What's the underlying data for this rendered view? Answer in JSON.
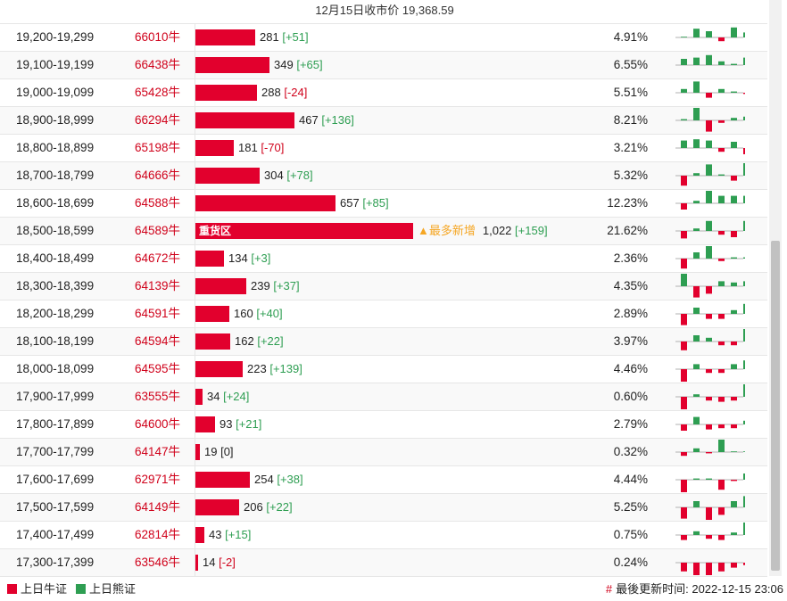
{
  "header": {
    "title": "12月15日收市价 19,368.59"
  },
  "colors": {
    "bull": "#e2002d",
    "bear": "#2e9e52",
    "accent": "#f5a623"
  },
  "rows": [
    {
      "range": "19,200-19,299",
      "code": "66010牛",
      "bar_fraction": 0.0645,
      "count": "281",
      "change": "[+51]",
      "dir": "pos",
      "pct": "4.91%",
      "spark": [
        0,
        0.7,
        0.5,
        -0.3,
        0.8,
        0.4
      ]
    },
    {
      "range": "19,100-19,199",
      "code": "66438牛",
      "bar_fraction": 0.08,
      "count": "349",
      "change": "[+65]",
      "dir": "pos",
      "pct": "6.55%",
      "spark": [
        0.5,
        0.6,
        0.8,
        0.3,
        0.1,
        0.6
      ]
    },
    {
      "range": "19,000-19,099",
      "code": "65428牛",
      "bar_fraction": 0.066,
      "count": "288",
      "change": "[-24]",
      "dir": "neg",
      "pct": "5.51%",
      "spark": [
        0.3,
        0.9,
        -0.4,
        0.3,
        0.1,
        -0.1
      ]
    },
    {
      "range": "18,900-18,999",
      "code": "66294牛",
      "bar_fraction": 0.107,
      "count": "467",
      "change": "[+136]",
      "dir": "pos",
      "pct": "8.21%",
      "spark": [
        0.1,
        1.0,
        -0.9,
        -0.2,
        0.2,
        0.3
      ]
    },
    {
      "range": "18,800-18,899",
      "code": "65198牛",
      "bar_fraction": 0.0415,
      "count": "181",
      "change": "[-70]",
      "dir": "neg",
      "pct": "3.21%",
      "spark": [
        0.6,
        0.7,
        0.6,
        -0.3,
        0.5,
        -0.5
      ]
    },
    {
      "range": "18,700-18,799",
      "code": "64666牛",
      "bar_fraction": 0.0697,
      "count": "304",
      "change": "[+78]",
      "dir": "pos",
      "pct": "5.32%",
      "spark": [
        -0.8,
        0.2,
        0.9,
        0.1,
        -0.4,
        1.0
      ]
    },
    {
      "range": "18,600-18,699",
      "code": "64588牛",
      "bar_fraction": 0.1506,
      "count": "657",
      "change": "[+85]",
      "dir": "pos",
      "pct": "12.23%",
      "spark": [
        -0.5,
        0.2,
        1.0,
        0.6,
        0.6,
        0.6
      ]
    },
    {
      "range": "18,500-18,599",
      "code": "64589牛",
      "bar_fraction": 0.2343,
      "bar_label": "重货区",
      "tag": "▲最多新增",
      "count": "1,022",
      "change": "[+159]",
      "dir": "pos",
      "pct": "21.62%",
      "spark": [
        -0.6,
        0.2,
        0.8,
        -0.3,
        -0.5,
        0.8
      ]
    },
    {
      "range": "18,400-18,499",
      "code": "64672牛",
      "bar_fraction": 0.0307,
      "count": "134",
      "change": "[+3]",
      "dir": "pos",
      "pct": "2.36%",
      "spark": [
        -0.8,
        0.5,
        1.0,
        -0.2,
        0.1,
        0.1
      ]
    },
    {
      "range": "18,300-18,399",
      "code": "64139牛",
      "bar_fraction": 0.0548,
      "count": "239",
      "change": "[+37]",
      "dir": "pos",
      "pct": "4.35%",
      "spark": [
        1.0,
        -0.9,
        -0.6,
        0.4,
        0.3,
        0.4
      ]
    },
    {
      "range": "18,200-18,299",
      "code": "64591牛",
      "bar_fraction": 0.0367,
      "count": "160",
      "change": "[+40]",
      "dir": "pos",
      "pct": "2.89%",
      "spark": [
        -0.9,
        0.5,
        -0.4,
        -0.4,
        0.3,
        0.8
      ]
    },
    {
      "range": "18,100-18,199",
      "code": "64594牛",
      "bar_fraction": 0.0371,
      "count": "162",
      "change": "[+22]",
      "dir": "pos",
      "pct": "3.97%",
      "spark": [
        -0.7,
        0.5,
        0.3,
        -0.3,
        -0.3,
        1.0
      ]
    },
    {
      "range": "18,000-18,099",
      "code": "64595牛",
      "bar_fraction": 0.0511,
      "count": "223",
      "change": "[+139]",
      "dir": "pos",
      "pct": "4.46%",
      "spark": [
        -1.0,
        0.4,
        -0.3,
        -0.3,
        0.4,
        0.7
      ]
    },
    {
      "range": "17,900-17,999",
      "code": "63555牛",
      "bar_fraction": 0.0078,
      "count": "34",
      "change": "[+24]",
      "dir": "pos",
      "pct": "0.60%",
      "spark": [
        -1.0,
        0.2,
        -0.3,
        -0.4,
        -0.3,
        1.0
      ]
    },
    {
      "range": "17,800-17,899",
      "code": "64600牛",
      "bar_fraction": 0.0213,
      "count": "93",
      "change": "[+21]",
      "dir": "pos",
      "pct": "2.79%",
      "spark": [
        -0.5,
        0.6,
        -0.4,
        -0.3,
        -0.3,
        0.3
      ]
    },
    {
      "range": "17,700-17,799",
      "code": "64147牛",
      "bar_fraction": 0.0044,
      "count": "19",
      "change": "[0]",
      "dir": "zero",
      "pct": "0.32%",
      "spark": [
        -0.3,
        0.3,
        -0.1,
        1.0,
        0,
        0
      ]
    },
    {
      "range": "17,600-17,699",
      "code": "62971牛",
      "bar_fraction": 0.0582,
      "count": "254",
      "change": "[+38]",
      "dir": "pos",
      "pct": "4.44%",
      "spark": [
        -1.0,
        0.1,
        0.1,
        -0.8,
        -0.1,
        0.5
      ]
    },
    {
      "range": "17,500-17,599",
      "code": "64149牛",
      "bar_fraction": 0.0472,
      "count": "206",
      "change": "[+22]",
      "dir": "pos",
      "pct": "5.25%",
      "spark": [
        -0.9,
        0.5,
        -1.0,
        -0.6,
        0.5,
        0.9
      ]
    },
    {
      "range": "17,400-17,499",
      "code": "62814牛",
      "bar_fraction": 0.0099,
      "count": "43",
      "change": "[+15]",
      "dir": "pos",
      "pct": "0.75%",
      "spark": [
        -0.4,
        0.3,
        -0.3,
        -0.4,
        0.2,
        1.0
      ]
    },
    {
      "range": "17,300-17,399",
      "code": "63546牛",
      "bar_fraction": 0.0032,
      "count": "14",
      "change": "[-2]",
      "dir": "neg",
      "pct": "0.24%",
      "spark": [
        -0.7,
        -1.0,
        -1.0,
        -0.7,
        -0.4,
        -0.2
      ]
    }
  ],
  "legend": {
    "bull_label": "上日牛证",
    "bear_label": "上日熊证"
  },
  "footer": {
    "hash": "#",
    "updated": "最後更新时间: 2022-12-15 23:06"
  }
}
